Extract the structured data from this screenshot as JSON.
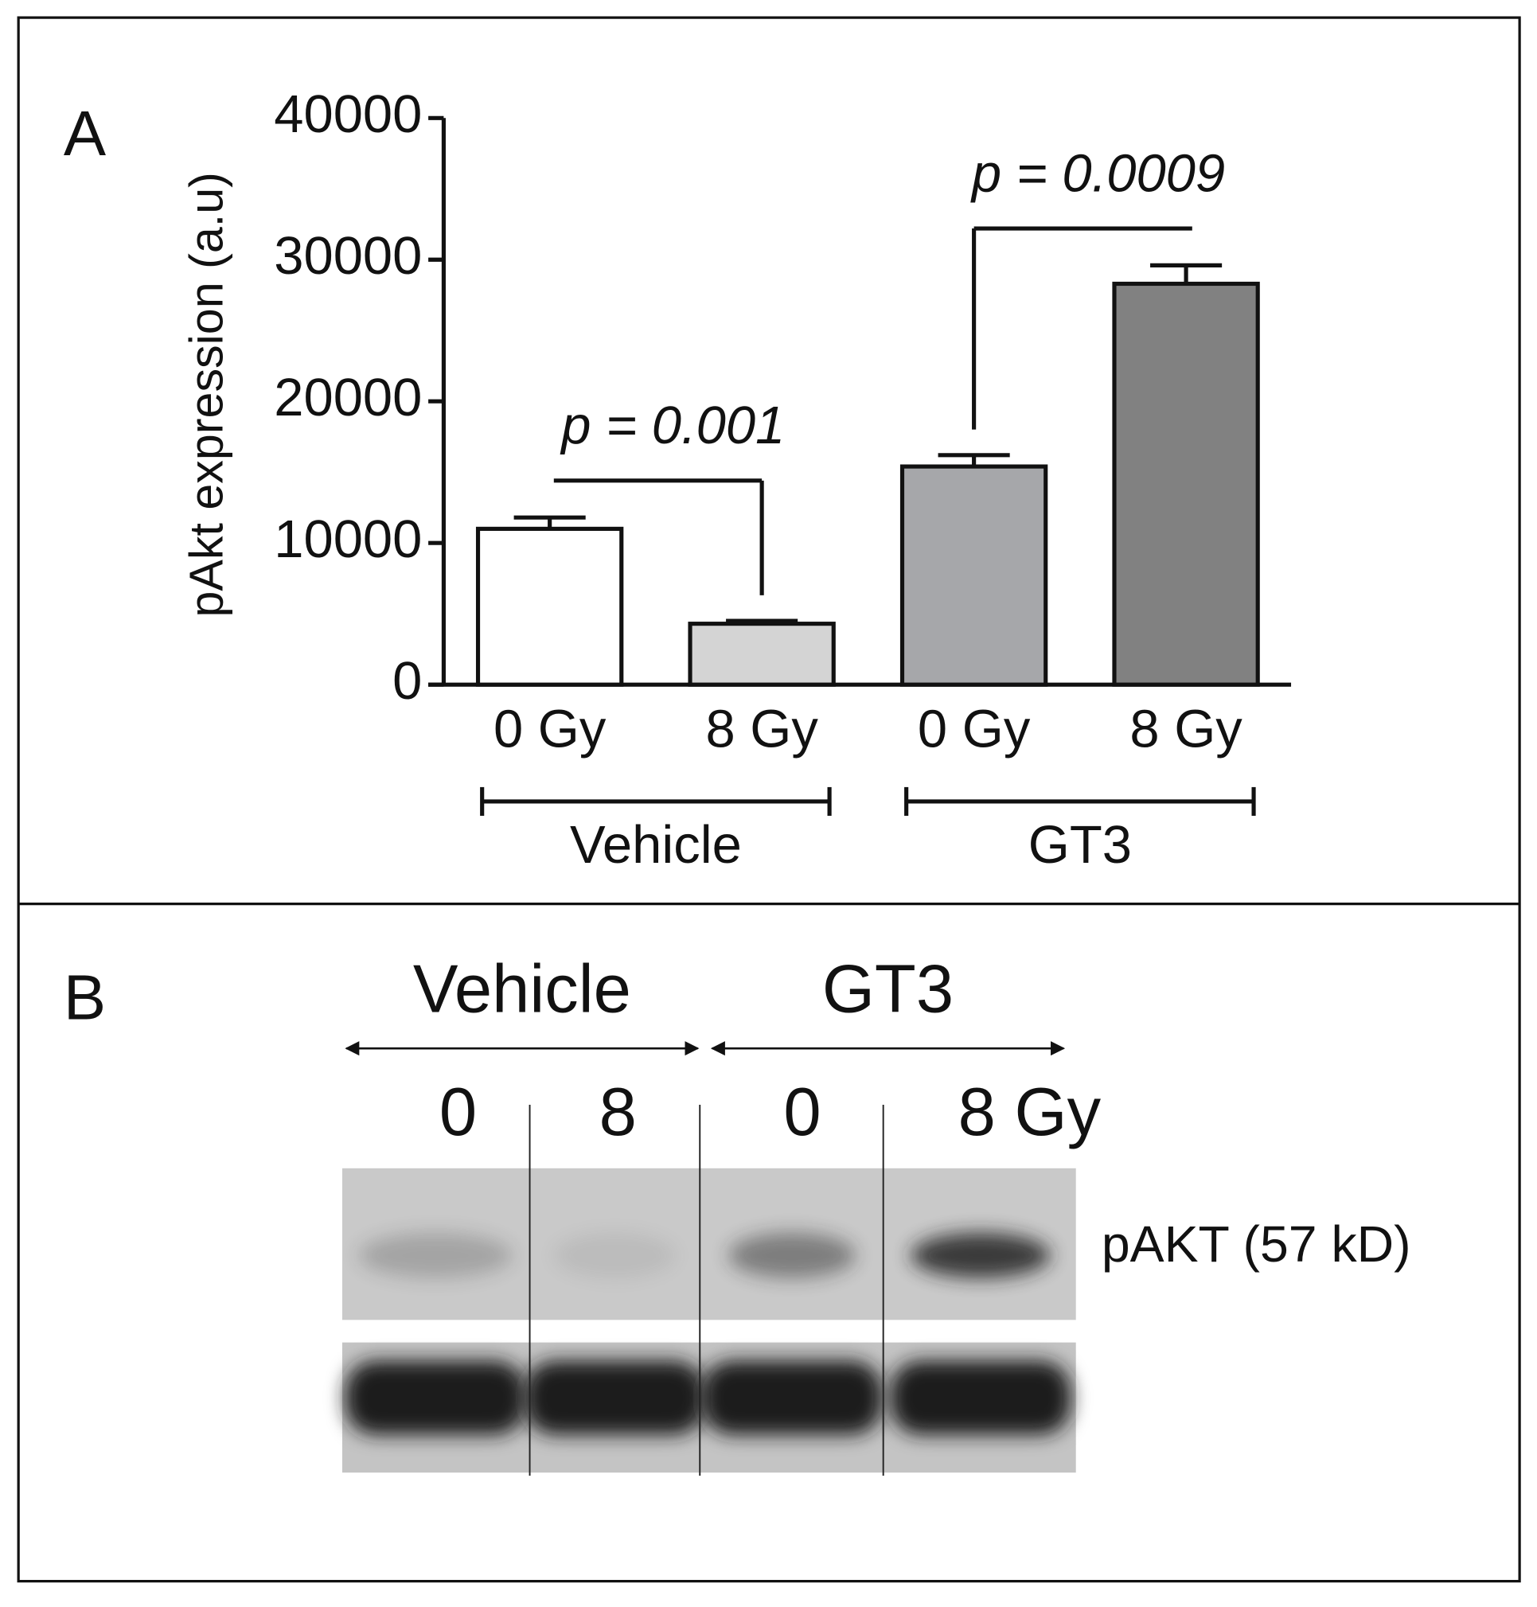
{
  "chart_data": {
    "type": "bar",
    "panel_label": "A",
    "ylabel": "pAkt expression (a.u)",
    "categories": [
      "0 Gy",
      "8 Gy",
      "0 Gy",
      "8 Gy"
    ],
    "values": [
      11000,
      4300,
      15400,
      28300
    ],
    "errors": [
      800,
      200,
      800,
      1300
    ],
    "colors": [
      "#ffffff",
      "#d4d4d4",
      "#a6a7aa",
      "#818181"
    ],
    "groups": [
      "Vehicle",
      "GT3"
    ],
    "annotations": [
      "p = 0.001",
      "p = 0.0009"
    ],
    "ylim": [
      0,
      40000
    ],
    "yticks": [
      0,
      10000,
      20000,
      30000,
      40000
    ]
  },
  "blot": {
    "panel_label": "B",
    "groups": [
      "Vehicle",
      "GT3"
    ],
    "lanes": [
      "0",
      "8",
      "0",
      "8 Gy"
    ],
    "band_label": "pAKT (57 kD)"
  }
}
